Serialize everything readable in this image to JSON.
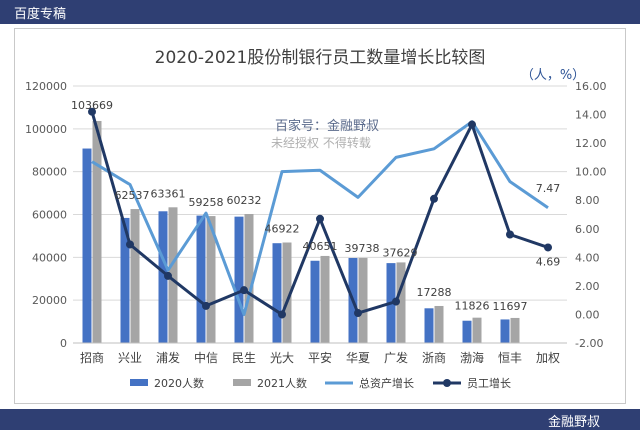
{
  "header": {
    "label": "百度专稿"
  },
  "footer": {
    "label": "金融野叔"
  },
  "colors": {
    "bar2020": "#4472c4",
    "bar2021": "#a5a5a5",
    "lineAsset": "#5b9bd5",
    "lineStaff": "#203864",
    "watermark": "#5b6b8c"
  },
  "watermark": {
    "line1": "百家号：金融野叔",
    "line2": "未经授权 不得转载"
  },
  "chart_data": {
    "type": "bar",
    "title": "2020-2021股份制银行员工数量增长比较图",
    "unit_label": "（人，%）",
    "categories": [
      "招商",
      "兴业",
      "浦发",
      "中信",
      "民生",
      "光大",
      "平安",
      "华夏",
      "广发",
      "浙商",
      "渤海",
      "恒丰",
      "加权"
    ],
    "y_left": {
      "min": 0,
      "max": 120000,
      "step": 20000,
      "ticks": [
        "0",
        "20000",
        "40000",
        "60000",
        "80000",
        "100000",
        "120000"
      ]
    },
    "y_right": {
      "min": -2,
      "max": 16,
      "step": 2,
      "ticks": [
        "-2.00",
        "0.00",
        "2.00",
        "4.00",
        "6.00",
        "8.00",
        "10.00",
        "12.00",
        "14.00",
        "16.00"
      ]
    },
    "series": [
      {
        "name": "2020人数",
        "type": "bar",
        "axis": "left",
        "values": [
          90800,
          58400,
          61500,
          59500,
          59000,
          46600,
          38400,
          39700,
          37300,
          16200,
          10400,
          11000,
          null
        ]
      },
      {
        "name": "2021人数",
        "type": "bar",
        "axis": "left",
        "values": [
          103669,
          62537,
          63361,
          59258,
          60232,
          46922,
          40651,
          39738,
          37629,
          17288,
          11826,
          11697,
          null
        ],
        "labels": [
          "103669",
          "62537",
          "63361",
          "59258",
          "60232",
          "46922",
          "40651",
          "39738",
          "37629",
          "17288",
          "11826",
          "11697",
          ""
        ]
      },
      {
        "name": "总资产增长",
        "type": "line",
        "axis": "right",
        "values": [
          10.7,
          9.1,
          3.1,
          7.1,
          0.0,
          10.0,
          10.1,
          8.2,
          11.0,
          11.6,
          13.5,
          9.3,
          7.47
        ]
      },
      {
        "name": "员工增长",
        "type": "line",
        "axis": "right",
        "values": [
          14.2,
          4.9,
          2.7,
          0.6,
          1.7,
          0.0,
          6.7,
          0.1,
          0.9,
          8.1,
          13.3,
          5.6,
          4.69
        ]
      }
    ],
    "end_labels": {
      "asset": "7.47",
      "staff": "4.69"
    },
    "grid": true,
    "legend": "bottom"
  }
}
